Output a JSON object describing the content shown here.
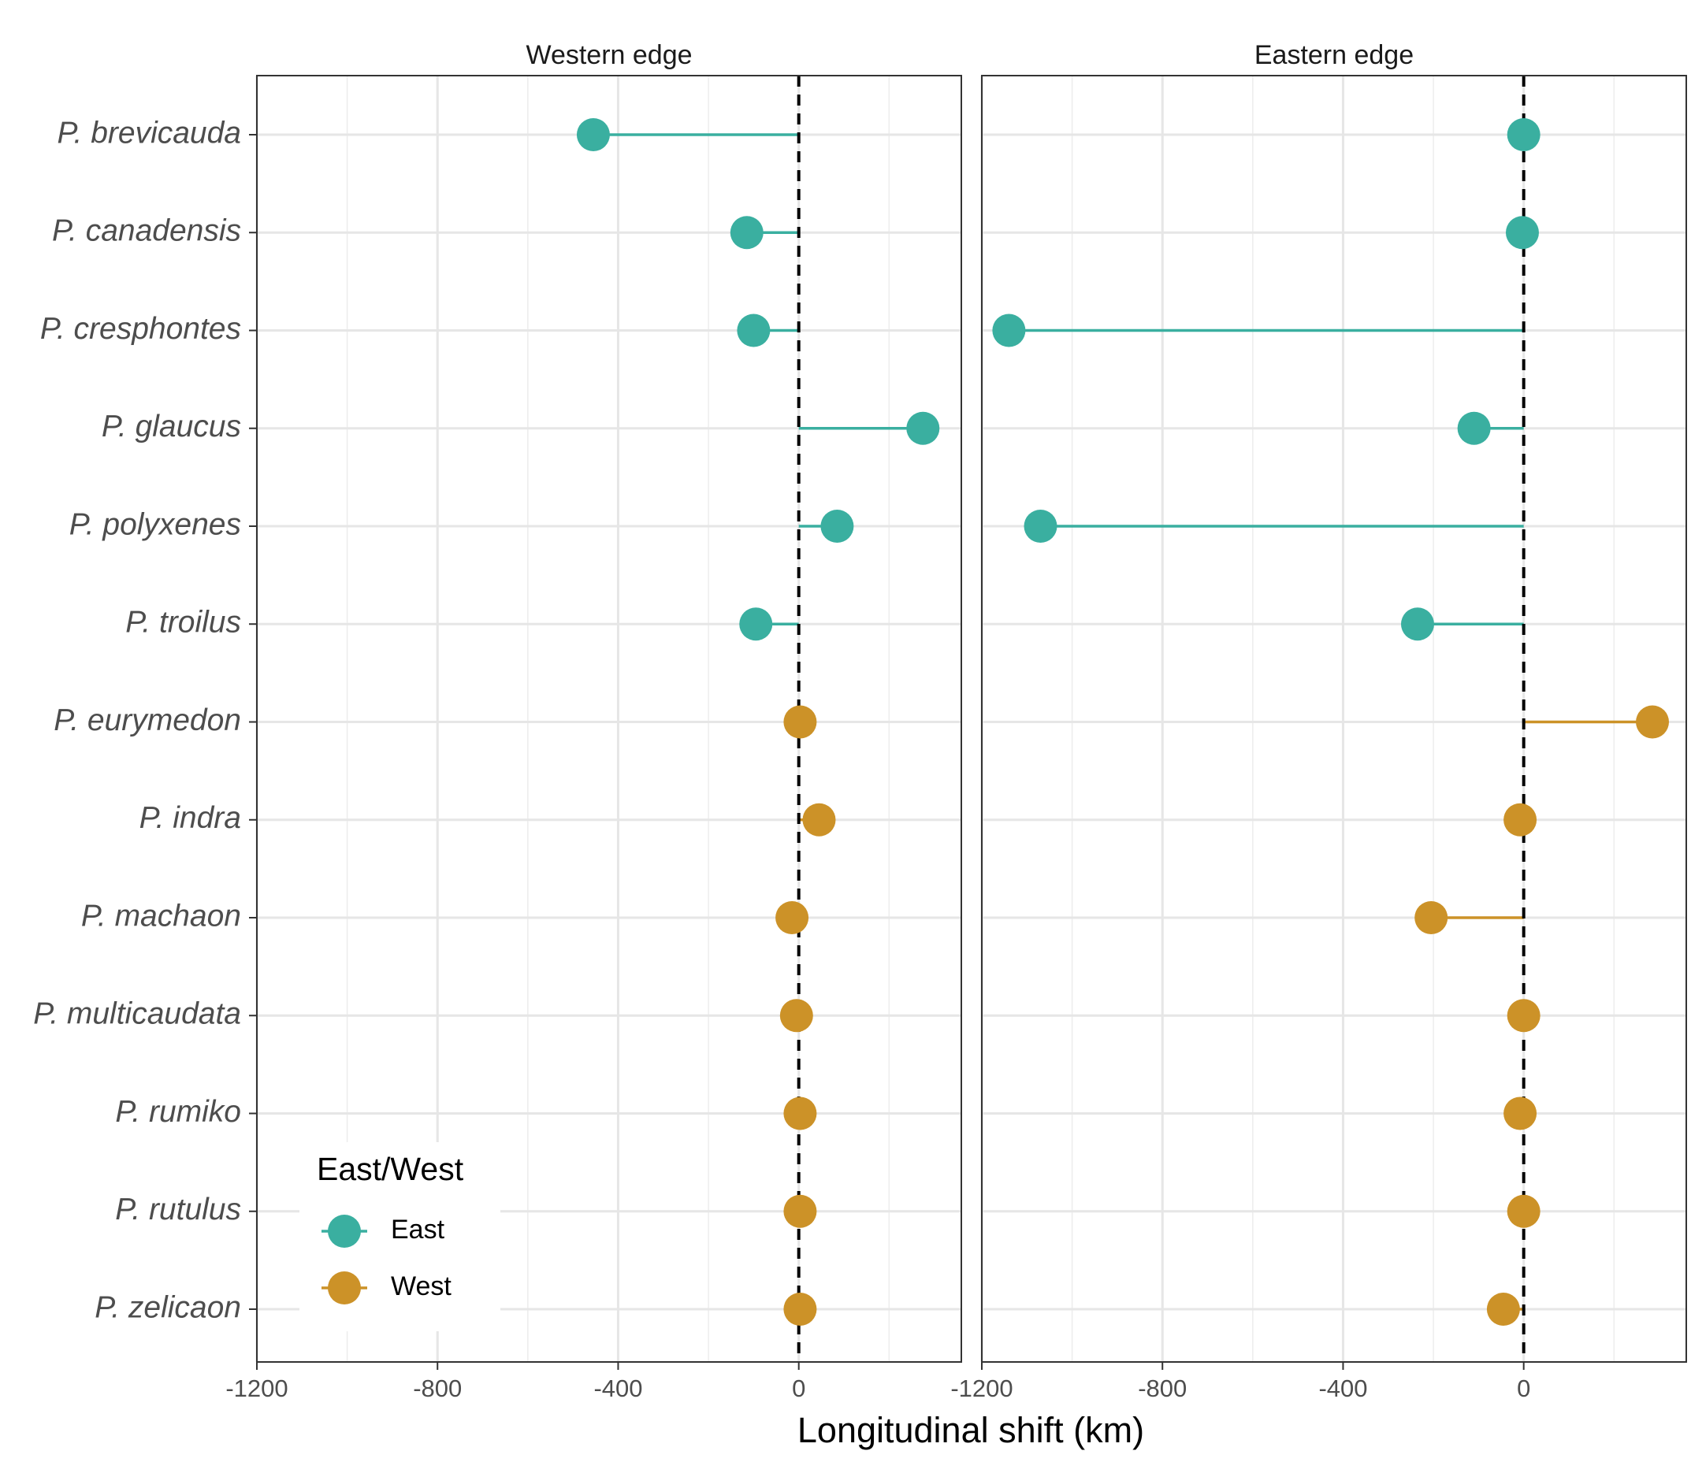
{
  "chart_data": {
    "type": "lollipop",
    "facet_variable": "edge",
    "panels": [
      {
        "label": "Western edge",
        "values": {
          "P. brevicauda": -455,
          "P. canadensis": -115,
          "P. cresphontes": -100,
          "P. glaucus": 275,
          "P. polyxenes": 85,
          "P. troilus": -95,
          "P. eurymedon": 3,
          "P. indra": 45,
          "P. machaon": -15,
          "P. multicaudata": -5,
          "P. rumiko": 3,
          "P. rutulus": 3,
          "P. zelicaon": 3
        }
      },
      {
        "label": "Eastern edge",
        "values": {
          "P. brevicauda": 0,
          "P. canadensis": -3,
          "P. cresphontes": -1140,
          "P. glaucus": -110,
          "P. polyxenes": -1070,
          "P. troilus": -235,
          "P. eurymedon": 285,
          "P. indra": -8,
          "P. machaon": -205,
          "P. multicaudata": 0,
          "P. rumiko": -8,
          "P. rutulus": 0,
          "P. zelicaon": -45
        }
      }
    ],
    "species": [
      {
        "name": "P. brevicauda",
        "group": "East"
      },
      {
        "name": "P. canadensis",
        "group": "East"
      },
      {
        "name": "P. cresphontes",
        "group": "East"
      },
      {
        "name": "P. glaucus",
        "group": "East"
      },
      {
        "name": "P. polyxenes",
        "group": "East"
      },
      {
        "name": "P. troilus",
        "group": "East"
      },
      {
        "name": "P. eurymedon",
        "group": "West"
      },
      {
        "name": "P. indra",
        "group": "West"
      },
      {
        "name": "P. machaon",
        "group": "West"
      },
      {
        "name": "P. multicaudata",
        "group": "West"
      },
      {
        "name": "P. rumiko",
        "group": "West"
      },
      {
        "name": "P. rutulus",
        "group": "West"
      },
      {
        "name": "P. zelicaon",
        "group": "West"
      }
    ],
    "xlabel": "Longitudinal shift (km)",
    "ylabel": "",
    "xlim": [
      -1200,
      360
    ],
    "x_ticks": [
      -1200,
      -800,
      -400,
      0
    ],
    "x_tick_labels": [
      "-1200",
      "-800",
      "-400",
      "0"
    ],
    "reference_line": {
      "x": 0,
      "style": "dashed"
    },
    "grid": true,
    "legend": {
      "title": "East/West",
      "position": "bottom-left",
      "entries": [
        {
          "label": "East",
          "color": "#3AAFA0"
        },
        {
          "label": "West",
          "color": "#CC9228"
        }
      ]
    }
  }
}
